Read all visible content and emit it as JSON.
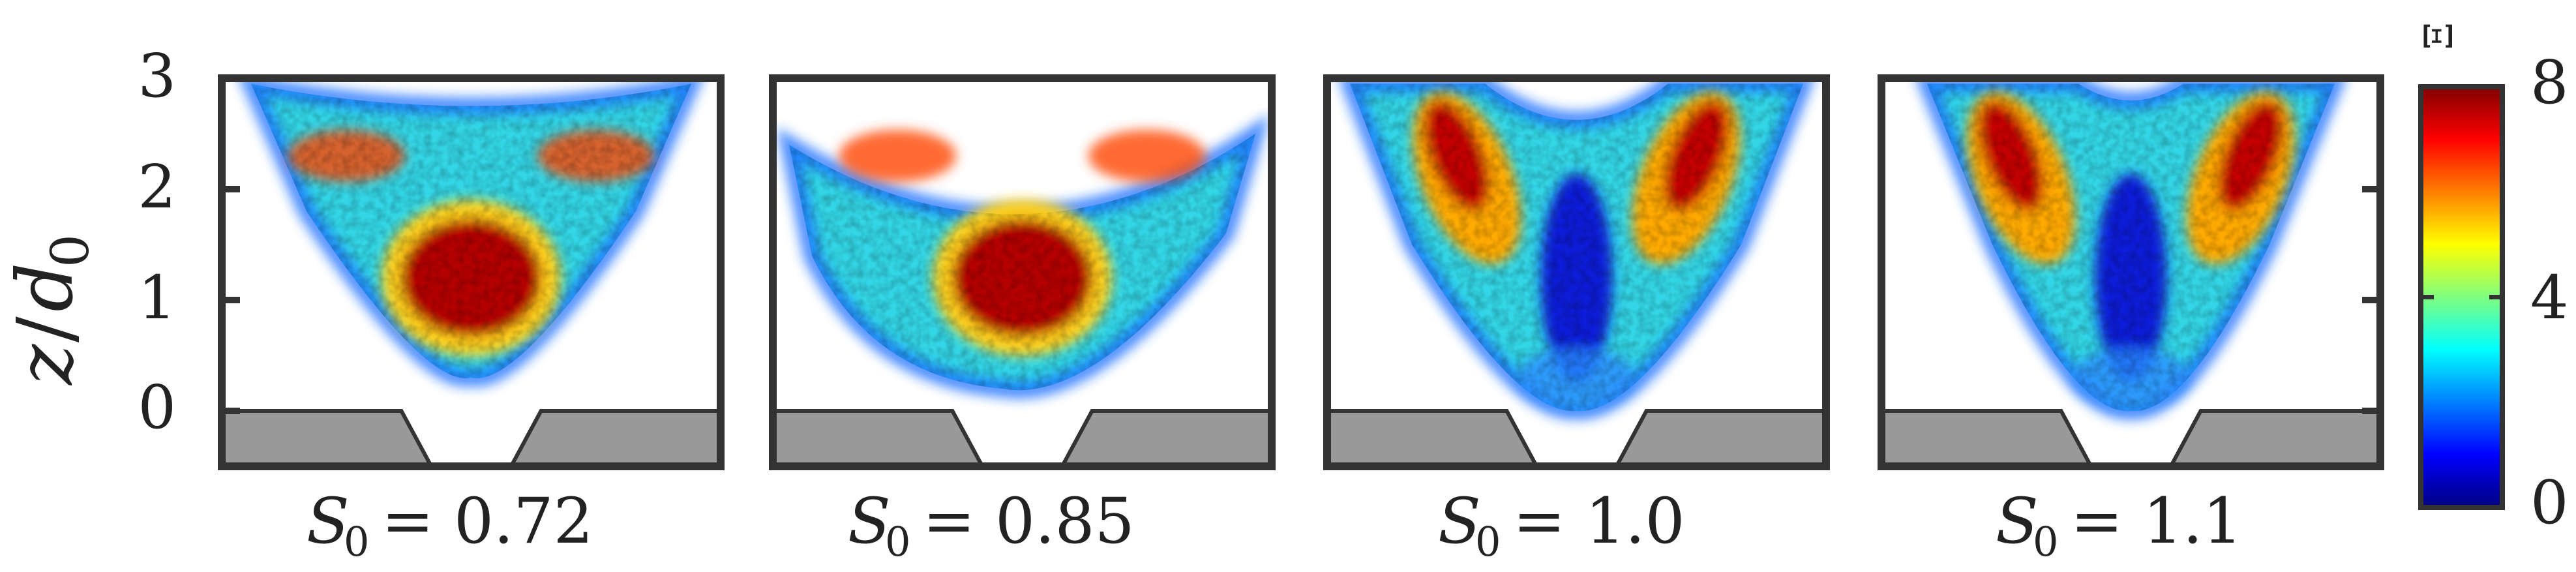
{
  "chart_data": {
    "type": "heatmap",
    "ylabel": "z / d0",
    "ylabel_parts": {
      "main": "z",
      "slash": "/",
      "d": "d",
      "sub": "0"
    },
    "ylim": [
      -0.5,
      3.0
    ],
    "yticks": [
      "3",
      "2",
      "1",
      "0"
    ],
    "colorbar": {
      "label": "Ξ",
      "range": [
        0,
        8
      ],
      "ticks": [
        "8",
        "4",
        "0"
      ],
      "colormap": "jet",
      "colors": [
        "#00007f",
        "#0000ff",
        "#007fff",
        "#00ffff",
        "#7fff7f",
        "#ffff00",
        "#ff7f00",
        "#ff0000",
        "#7f0000"
      ]
    },
    "panels": [
      {
        "label": "S0 = 0.72",
        "sym": "S",
        "sub": "0",
        "eq": "= 0.72",
        "S0": 0.72,
        "shape": "solid-cone",
        "flame_top": 3.0,
        "flame_bottom": 0.3,
        "centerline_level": "high"
      },
      {
        "label": "S0 = 0.85",
        "sym": "S",
        "sub": "0",
        "eq": "= 0.85",
        "S0": 0.85,
        "shape": "bowl",
        "flame_top": 2.5,
        "flame_bottom": 0.2,
        "centerline_level": "high"
      },
      {
        "label": "S0 = 1.0",
        "sym": "S",
        "sub": "0",
        "eq": "= 1.0",
        "S0": 1.0,
        "shape": "V",
        "flame_top": 3.0,
        "flame_bottom": 0.0,
        "centerline_level": "low"
      },
      {
        "label": "S0 = 1.1",
        "sym": "S",
        "sub": "0",
        "eq": "= 1.1",
        "S0": 1.1,
        "shape": "V-narrow",
        "flame_top": 3.0,
        "flame_bottom": 0.0,
        "centerline_level": "low"
      }
    ],
    "nozzle_color": "#999999",
    "grid": false
  }
}
